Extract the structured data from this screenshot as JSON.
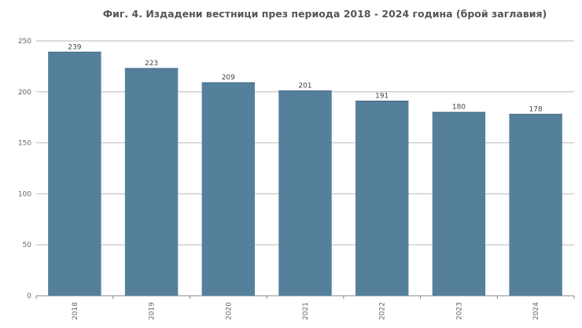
{
  "chart_data": {
    "type": "bar",
    "title": "Фиг. 4. Издадени вестници през периода 2018 - 2024 година (брой заглавия)",
    "xlabel": "",
    "ylabel": "",
    "categories": [
      "2018",
      "2019",
      "2020",
      "2021",
      "2022",
      "2023",
      "2024"
    ],
    "values": [
      239,
      223,
      209,
      201,
      191,
      180,
      178
    ],
    "ylim": [
      0,
      250
    ],
    "yticks": [
      "0",
      "50",
      "100",
      "150",
      "200",
      "250"
    ],
    "grid": true,
    "legend": "none",
    "bar_color": "#55809c",
    "grid_color": "#bbbbbb"
  }
}
